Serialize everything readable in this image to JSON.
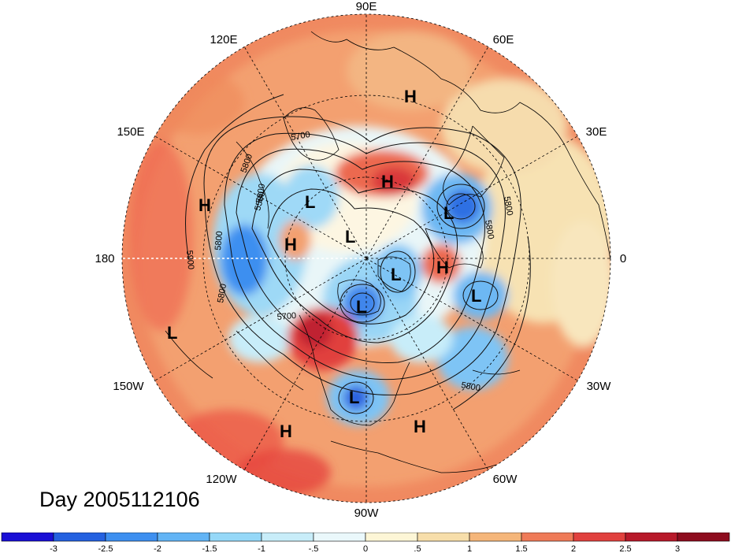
{
  "map": {
    "longitude_labels": [
      "90E",
      "60E",
      "30E",
      "0",
      "30W",
      "60W",
      "90W",
      "120W",
      "150W",
      "180",
      "150E",
      "120E"
    ],
    "contour_labels": [
      "5700",
      "5800",
      "5500",
      "5800",
      "5800",
      "5600",
      "5800",
      "5900",
      "5800",
      "5700",
      "5800"
    ],
    "centers": [
      {
        "type": "H",
        "region": "north-central asia"
      },
      {
        "type": "H",
        "region": "siberia"
      },
      {
        "type": "L",
        "region": "east siberia"
      },
      {
        "type": "L",
        "region": "europe"
      },
      {
        "type": "H",
        "region": "west pacific"
      },
      {
        "type": "H",
        "region": "bering sea"
      },
      {
        "type": "L",
        "region": "arctic ocean"
      },
      {
        "type": "L",
        "region": "greenland"
      },
      {
        "type": "H",
        "region": "scandinavia"
      },
      {
        "type": "L",
        "region": "north atlantic"
      },
      {
        "type": "L",
        "region": "hudson bay"
      },
      {
        "type": "L",
        "region": "central pacific"
      },
      {
        "type": "L",
        "region": "eastern united states"
      },
      {
        "type": "H",
        "region": "caribbean"
      },
      {
        "type": "H",
        "region": "east pacific"
      }
    ]
  },
  "title": "Day 2005112106",
  "colorbar": {
    "tick_labels": [
      "-3",
      "-2.5",
      "-2",
      "-1.5",
      "-1",
      "-.5",
      "0",
      ".5",
      "1",
      "1.5",
      "2",
      "2.5",
      "3"
    ],
    "colors": [
      "#1a0fd6",
      "#2461e0",
      "#3d8ff0",
      "#62b4f5",
      "#95d8f8",
      "#c8edf9",
      "#eaf8fb",
      "#fdf6d6",
      "#f7deaa",
      "#f5b67a",
      "#ef7b58",
      "#e1413e",
      "#b8192a",
      "#8e0c1e"
    ]
  }
}
